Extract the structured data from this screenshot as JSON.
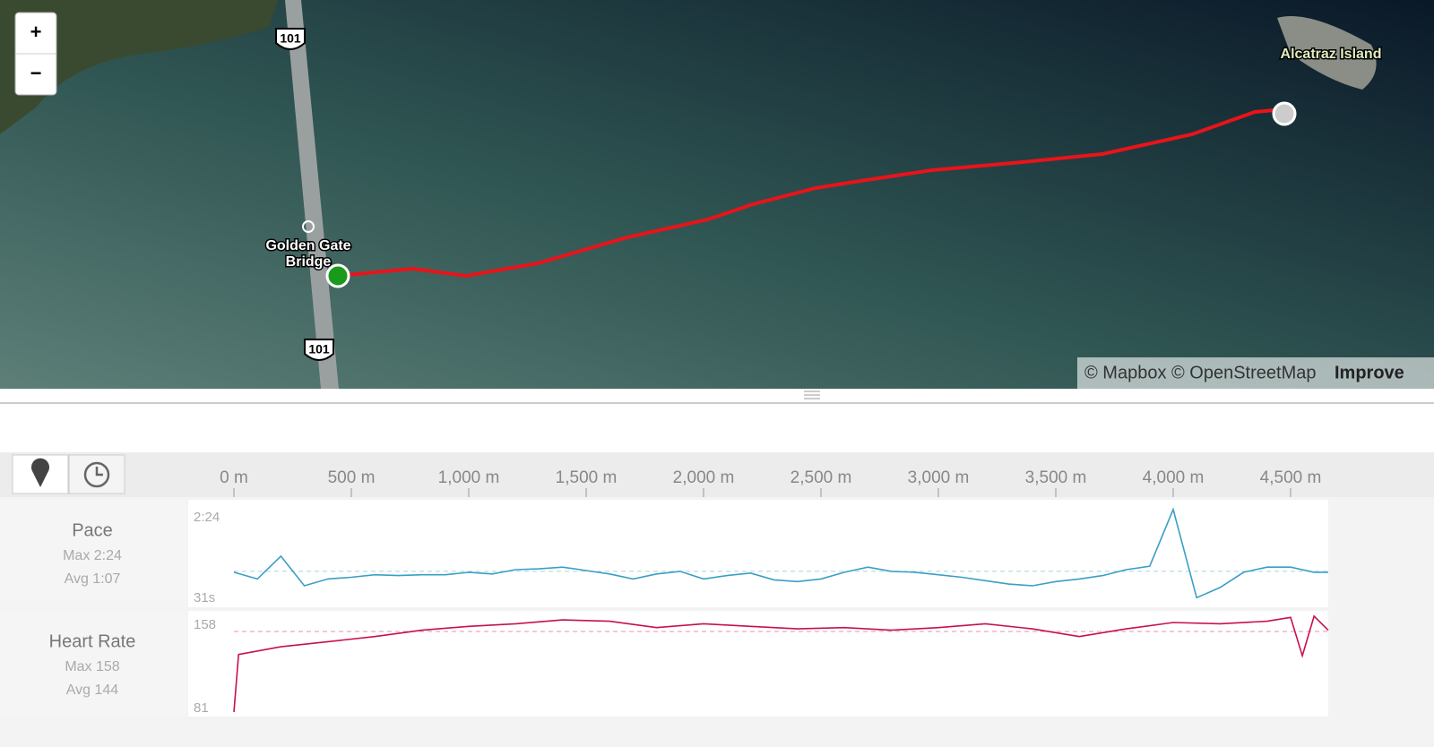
{
  "map": {
    "zoom_in": "+",
    "zoom_out": "−",
    "bridge_label": "Golden Gate Bridge",
    "island_label": "Alcatraz Island",
    "shields": [
      "101",
      "101"
    ],
    "attribution": "© Mapbox © OpenStreetMap",
    "attribution_link": "Improve"
  },
  "chart_data": [
    {
      "type": "line",
      "title": "Pace",
      "stats": [
        "Max 2:24",
        "Avg 1:07"
      ],
      "x": [
        0,
        100,
        200,
        300,
        400,
        500,
        600,
        700,
        800,
        900,
        1000,
        1100,
        1200,
        1300,
        1400,
        1500,
        1600,
        1700,
        1800,
        1900,
        2000,
        2100,
        2200,
        2300,
        2400,
        2500,
        2600,
        2700,
        2800,
        2900,
        3000,
        3100,
        3200,
        3300,
        3400,
        3500,
        3600,
        3700,
        3800,
        3900,
        4000,
        4100,
        4200,
        4300,
        4400,
        4500,
        4600,
        4660
      ],
      "xlim": [
        -50,
        4660
      ],
      "xticks": [
        {
          "value": 0,
          "label": "0 m"
        },
        {
          "value": 500,
          "label": "500 m"
        },
        {
          "value": 1000,
          "label": "1,000 m"
        },
        {
          "value": 1500,
          "label": "1,500 m"
        },
        {
          "value": 2000,
          "label": "2,000 m"
        },
        {
          "value": 2500,
          "label": "2,500 m"
        },
        {
          "value": 3000,
          "label": "3,000 m"
        },
        {
          "value": 3500,
          "label": "3,500 m"
        },
        {
          "value": 4000,
          "label": "4,000 m"
        },
        {
          "value": 4500,
          "label": "4,500 m"
        }
      ],
      "ylim": [
        31,
        144
      ],
      "yticks": [
        {
          "value": 144,
          "label": "2:24"
        },
        {
          "value": 31,
          "label": "31s"
        }
      ],
      "average": 67,
      "series": [
        {
          "color": "#3a9fc4",
          "values": [
            66,
            58,
            85,
            50,
            58,
            60,
            63,
            62,
            63,
            63,
            66,
            64,
            69,
            70,
            72,
            68,
            64,
            58,
            64,
            67,
            58,
            62,
            65,
            57,
            55,
            58,
            66,
            72,
            67,
            66,
            63,
            60,
            56,
            52,
            50,
            55,
            58,
            62,
            69,
            73,
            140,
            36,
            48,
            66,
            72,
            72,
            66,
            66
          ]
        }
      ]
    },
    {
      "type": "line",
      "title": "Heart Rate",
      "stats": [
        "Max 158",
        "Avg 144"
      ],
      "x": [
        0,
        20,
        200,
        400,
        600,
        800,
        1000,
        1200,
        1400,
        1600,
        1800,
        2000,
        2200,
        2400,
        2600,
        2800,
        3000,
        3200,
        3400,
        3600,
        3800,
        4000,
        4200,
        4400,
        4500,
        4550,
        4600,
        4660
      ],
      "xlim": [
        -50,
        4660
      ],
      "ylim": [
        81,
        158
      ],
      "yticks": [
        158,
        81
      ],
      "average": 144,
      "series": [
        {
          "color": "#c8104f",
          "values": [
            81,
            126,
            132,
            136,
            140,
            145,
            148,
            150,
            153,
            152,
            147,
            150,
            148,
            146,
            147,
            145,
            147,
            150,
            146,
            140,
            146,
            151,
            150,
            152,
            155,
            125,
            156,
            145
          ]
        }
      ]
    }
  ]
}
